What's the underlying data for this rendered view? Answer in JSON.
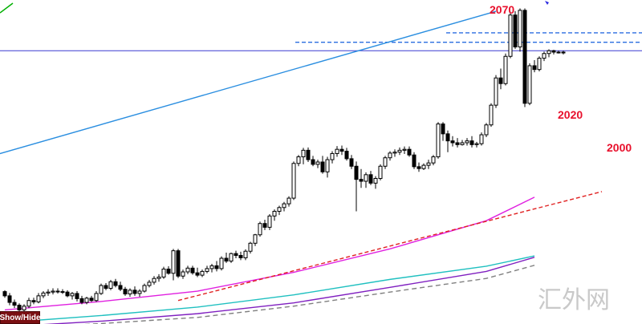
{
  "chart_data": {
    "type": "candlestick",
    "ylim": [
      1400,
      2090
    ],
    "candles": [
      [
        1469,
        1472,
        1456,
        1460
      ],
      [
        1460,
        1466,
        1440,
        1446
      ],
      [
        1446,
        1452,
        1434,
        1440
      ],
      [
        1440,
        1444,
        1424,
        1430
      ],
      [
        1430,
        1442,
        1426,
        1438
      ],
      [
        1438,
        1456,
        1434,
        1450
      ],
      [
        1450,
        1456,
        1442,
        1447
      ],
      [
        1447,
        1466,
        1444,
        1460
      ],
      [
        1460,
        1470,
        1455,
        1466
      ],
      [
        1466,
        1474,
        1460,
        1468
      ],
      [
        1468,
        1476,
        1463,
        1470
      ],
      [
        1470,
        1476,
        1465,
        1469
      ],
      [
        1469,
        1474,
        1464,
        1468
      ],
      [
        1468,
        1472,
        1457,
        1460
      ],
      [
        1460,
        1468,
        1452,
        1465
      ],
      [
        1465,
        1470,
        1448,
        1454
      ],
      [
        1454,
        1460,
        1442,
        1446
      ],
      [
        1446,
        1458,
        1442,
        1455
      ],
      [
        1455,
        1460,
        1447,
        1450
      ],
      [
        1450,
        1470,
        1447,
        1465
      ],
      [
        1465,
        1486,
        1462,
        1482
      ],
      [
        1482,
        1487,
        1472,
        1476
      ],
      [
        1476,
        1494,
        1472,
        1490
      ],
      [
        1490,
        1496,
        1478,
        1482
      ],
      [
        1482,
        1490,
        1470,
        1474
      ],
      [
        1474,
        1479,
        1460,
        1464
      ],
      [
        1464,
        1476,
        1458,
        1472
      ],
      [
        1472,
        1480,
        1460,
        1465
      ],
      [
        1465,
        1474,
        1458,
        1470
      ],
      [
        1470,
        1486,
        1467,
        1482
      ],
      [
        1482,
        1494,
        1478,
        1489
      ],
      [
        1489,
        1502,
        1484,
        1497
      ],
      [
        1497,
        1506,
        1490,
        1500
      ],
      [
        1500,
        1522,
        1496,
        1517
      ],
      [
        1517,
        1523,
        1505,
        1508
      ],
      [
        1508,
        1560,
        1493,
        1556
      ],
      [
        1556,
        1560,
        1498,
        1502
      ],
      [
        1502,
        1516,
        1496,
        1511
      ],
      [
        1511,
        1524,
        1506,
        1519
      ],
      [
        1519,
        1524,
        1505,
        1509
      ],
      [
        1509,
        1520,
        1500,
        1504
      ],
      [
        1504,
        1516,
        1500,
        1512
      ],
      [
        1512,
        1524,
        1508,
        1518
      ],
      [
        1518,
        1528,
        1510,
        1524
      ],
      [
        1524,
        1534,
        1512,
        1518
      ],
      [
        1518,
        1544,
        1514,
        1540
      ],
      [
        1540,
        1552,
        1530,
        1534
      ],
      [
        1534,
        1552,
        1530,
        1550
      ],
      [
        1550,
        1556,
        1540,
        1546
      ],
      [
        1546,
        1554,
        1536,
        1541
      ],
      [
        1541,
        1559,
        1536,
        1555
      ],
      [
        1555,
        1575,
        1550,
        1572
      ],
      [
        1572,
        1592,
        1566,
        1590
      ],
      [
        1590,
        1618,
        1586,
        1614
      ],
      [
        1614,
        1622,
        1600,
        1606
      ],
      [
        1606,
        1634,
        1600,
        1630
      ],
      [
        1630,
        1644,
        1620,
        1640
      ],
      [
        1640,
        1652,
        1632,
        1648
      ],
      [
        1648,
        1660,
        1640,
        1656
      ],
      [
        1656,
        1672,
        1650,
        1668
      ],
      [
        1668,
        1746,
        1664,
        1742
      ],
      [
        1742,
        1760,
        1736,
        1756
      ],
      [
        1756,
        1775,
        1740,
        1770
      ],
      [
        1770,
        1776,
        1745,
        1750
      ],
      [
        1750,
        1758,
        1736,
        1740
      ],
      [
        1740,
        1750,
        1732,
        1745
      ],
      [
        1745,
        1758,
        1720,
        1724
      ],
      [
        1724,
        1756,
        1712,
        1750
      ],
      [
        1750,
        1768,
        1742,
        1763
      ],
      [
        1763,
        1779,
        1756,
        1772
      ],
      [
        1772,
        1780,
        1760,
        1768
      ],
      [
        1768,
        1775,
        1748,
        1752
      ],
      [
        1752,
        1760,
        1730,
        1736
      ],
      [
        1736,
        1746,
        1640,
        1708
      ],
      [
        1708,
        1730,
        1690,
        1704
      ],
      [
        1704,
        1723,
        1690,
        1718
      ],
      [
        1718,
        1726,
        1696,
        1700
      ],
      [
        1700,
        1715,
        1688,
        1710
      ],
      [
        1710,
        1740,
        1706,
        1736
      ],
      [
        1736,
        1758,
        1730,
        1754
      ],
      [
        1754,
        1768,
        1748,
        1764
      ],
      [
        1764,
        1772,
        1756,
        1766
      ],
      [
        1766,
        1776,
        1760,
        1770
      ],
      [
        1770,
        1778,
        1762,
        1772
      ],
      [
        1772,
        1778,
        1756,
        1760
      ],
      [
        1760,
        1766,
        1730,
        1735
      ],
      [
        1735,
        1744,
        1724,
        1731
      ],
      [
        1731,
        1742,
        1728,
        1738
      ],
      [
        1738,
        1750,
        1730,
        1743
      ],
      [
        1743,
        1760,
        1738,
        1756
      ],
      [
        1756,
        1830,
        1752,
        1826
      ],
      [
        1826,
        1830,
        1790,
        1805
      ],
      [
        1805,
        1812,
        1766,
        1790
      ],
      [
        1790,
        1800,
        1778,
        1786
      ],
      [
        1786,
        1796,
        1776,
        1782
      ],
      [
        1782,
        1792,
        1780,
        1786
      ],
      [
        1786,
        1796,
        1780,
        1790
      ],
      [
        1790,
        1800,
        1776,
        1782
      ],
      [
        1782,
        1788,
        1776,
        1784
      ],
      [
        1784,
        1808,
        1780,
        1803
      ],
      [
        1803,
        1828,
        1798,
        1824
      ],
      [
        1824,
        1870,
        1820,
        1866
      ],
      [
        1866,
        1930,
        1860,
        1924
      ],
      [
        1924,
        1944,
        1900,
        1912
      ],
      [
        1912,
        1976,
        1908,
        1970
      ],
      [
        1970,
        2065,
        1966,
        2058
      ],
      [
        2058,
        2066,
        1986,
        1990
      ],
      [
        1990,
        2072,
        1980,
        2068
      ],
      [
        2068,
        2072,
        1862,
        1870
      ],
      [
        1870,
        1955,
        1866,
        1950
      ],
      [
        1950,
        1962,
        1936,
        1942
      ],
      [
        1942,
        1970,
        1938,
        1966
      ],
      [
        1966,
        1980,
        1960,
        1976
      ],
      [
        1976,
        1985,
        1968,
        1982
      ],
      [
        1982,
        1984,
        1974,
        1979
      ],
      [
        1979,
        1982,
        1976,
        1978
      ],
      [
        1978,
        1982,
        1974,
        1979
      ]
    ],
    "horizontal_lines": [
      {
        "price": 1982,
        "color": "#3a3ad0",
        "style": "solid"
      },
      {
        "price": 2020,
        "color": "#2a6de0",
        "style": "dashed",
        "label": "2020"
      },
      {
        "price": 2000,
        "color": "#2a6de0",
        "style": "dashed",
        "label": "2000"
      }
    ],
    "top_label": "2070",
    "moving_averages": [
      {
        "color": "#e020e0",
        "style": "solid",
        "points": [
          [
            0,
            1430
          ],
          [
            20,
            1448
          ],
          [
            40,
            1470
          ],
          [
            60,
            1510
          ],
          [
            80,
            1560
          ],
          [
            100,
            1620
          ],
          [
            110,
            1670
          ]
        ]
      },
      {
        "color": "#20c0c0",
        "style": "solid",
        "points": [
          [
            0,
            1403
          ],
          [
            20,
            1418
          ],
          [
            40,
            1436
          ],
          [
            60,
            1462
          ],
          [
            80,
            1495
          ],
          [
            100,
            1523
          ],
          [
            110,
            1545
          ]
        ]
      },
      {
        "color": "#8020c0",
        "style": "solid",
        "points": [
          [
            0,
            1394
          ],
          [
            20,
            1406
          ],
          [
            40,
            1422
          ],
          [
            60,
            1445
          ],
          [
            80,
            1478
          ],
          [
            100,
            1512
          ],
          [
            110,
            1542
          ]
        ]
      },
      {
        "color": "#808080",
        "style": "dashed",
        "points": [
          [
            0,
            1389
          ],
          [
            20,
            1401
          ],
          [
            40,
            1414
          ],
          [
            60,
            1438
          ],
          [
            80,
            1468
          ],
          [
            100,
            1497
          ],
          [
            110,
            1525
          ]
        ]
      }
    ],
    "trendlines": [
      {
        "color": "#2a8ee0",
        "style": "solid",
        "from": [
          -2,
          1760
        ],
        "to": [
          102,
          2066
        ]
      },
      {
        "color": "#e02020",
        "style": "dashed",
        "from": [
          36,
          1450
        ],
        "to": [
          124,
          1682
        ]
      }
    ]
  },
  "labels": {
    "top": "2070",
    "level_2020": "2020",
    "level_2000": "2000",
    "watermark": "汇外网",
    "show_hide": "Show/Hide"
  },
  "colors": {
    "bull": "#ffffff",
    "bear": "#000000",
    "label": "#e8102c"
  }
}
